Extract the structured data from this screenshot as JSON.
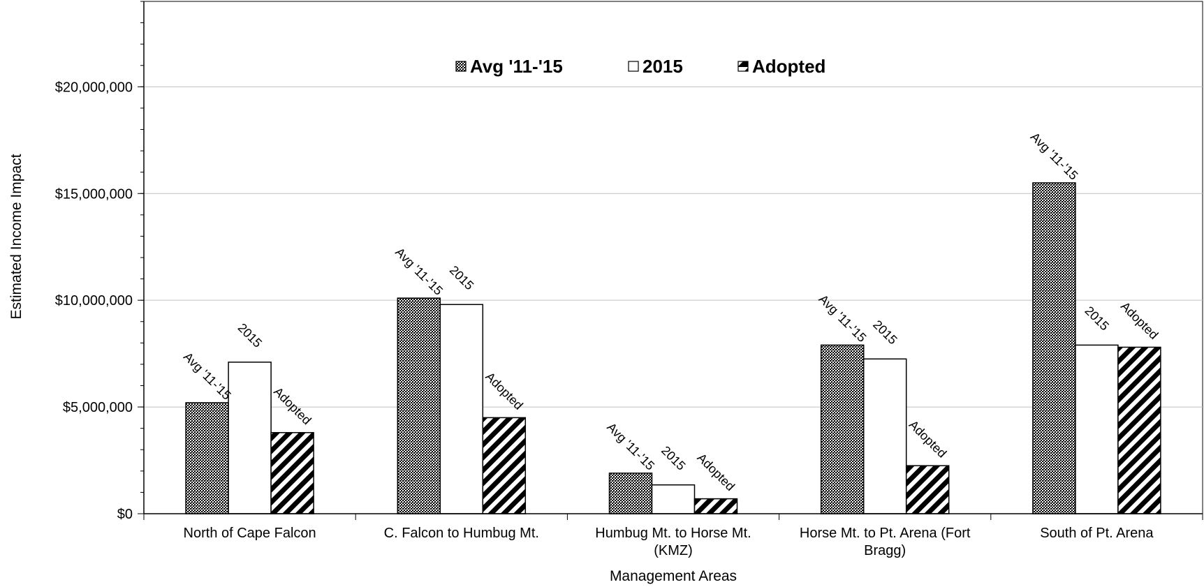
{
  "chart_data": {
    "type": "bar",
    "title": "",
    "xlabel": "Management Areas",
    "ylabel": "Estimated Income Impact",
    "ylim": [
      0,
      24000000
    ],
    "yticks": [
      0,
      5000000,
      10000000,
      15000000,
      20000000
    ],
    "ytick_labels": [
      "$0",
      "$5,000,000",
      "$10,000,000",
      "$15,000,000",
      "$20,000,000"
    ],
    "grid": true,
    "legend_position": "top-center",
    "categories": [
      [
        "North of Cape Falcon"
      ],
      [
        "C. Falcon to Humbug Mt."
      ],
      [
        "Humbug Mt. to Horse Mt.",
        "(KMZ)"
      ],
      [
        "Horse Mt. to Pt. Arena (Fort",
        "Bragg)"
      ],
      [
        "South of Pt. Arena"
      ]
    ],
    "series": [
      {
        "name": "Avg '11-'15",
        "label": "Avg '11-'15",
        "pattern": "crosshatch",
        "values": [
          5200000,
          10100000,
          1900000,
          7900000,
          15500000
        ]
      },
      {
        "name": "2015",
        "label": "2015",
        "pattern": "solid-white",
        "values": [
          7100000,
          9800000,
          1350000,
          7250000,
          7900000
        ]
      },
      {
        "name": "Adopted",
        "label": "Adopted",
        "pattern": "diagonal-stripes",
        "values": [
          3800000,
          4500000,
          700000,
          2250000,
          7800000
        ]
      }
    ],
    "colors": {
      "bar_outline": "#000000",
      "gridline": "#bfbfbf",
      "fill_white": "#ffffff",
      "fill_black": "#000000"
    }
  }
}
